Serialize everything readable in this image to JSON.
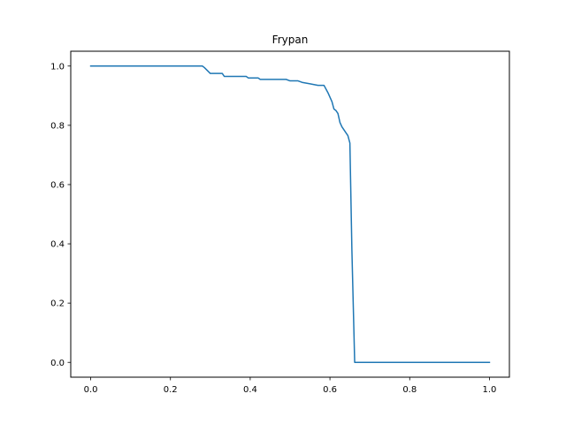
{
  "chart_data": {
    "type": "line",
    "title": "Frypan",
    "xlabel": "",
    "ylabel": "",
    "xlim": [
      -0.05,
      1.05
    ],
    "ylim": [
      -0.05,
      1.05
    ],
    "grid": false,
    "legend": "none",
    "x_ticks": [
      0.0,
      0.2,
      0.4,
      0.6,
      0.8,
      1.0
    ],
    "x_tick_labels": [
      "0.0",
      "0.2",
      "0.4",
      "0.6",
      "0.8",
      "1.0"
    ],
    "y_ticks": [
      0.0,
      0.2,
      0.4,
      0.6,
      0.8,
      1.0
    ],
    "y_tick_labels": [
      "0.0",
      "0.2",
      "0.4",
      "0.6",
      "0.8",
      "1.0"
    ],
    "series": [
      {
        "color": "#1f77b4",
        "x": [
          0.0,
          0.28,
          0.285,
          0.3,
          0.33,
          0.335,
          0.39,
          0.395,
          0.42,
          0.425,
          0.49,
          0.5,
          0.52,
          0.53,
          0.55,
          0.57,
          0.575,
          0.585,
          0.595,
          0.605,
          0.61,
          0.615,
          0.62,
          0.625,
          0.63,
          0.645,
          0.65,
          0.655,
          0.662,
          0.665,
          1.0
        ],
        "y": [
          1.0,
          1.0,
          0.995,
          0.975,
          0.975,
          0.965,
          0.965,
          0.96,
          0.96,
          0.955,
          0.955,
          0.95,
          0.95,
          0.945,
          0.94,
          0.935,
          0.935,
          0.935,
          0.91,
          0.88,
          0.855,
          0.85,
          0.84,
          0.81,
          0.795,
          0.765,
          0.74,
          0.38,
          0.0,
          0.0,
          0.0
        ]
      }
    ]
  }
}
